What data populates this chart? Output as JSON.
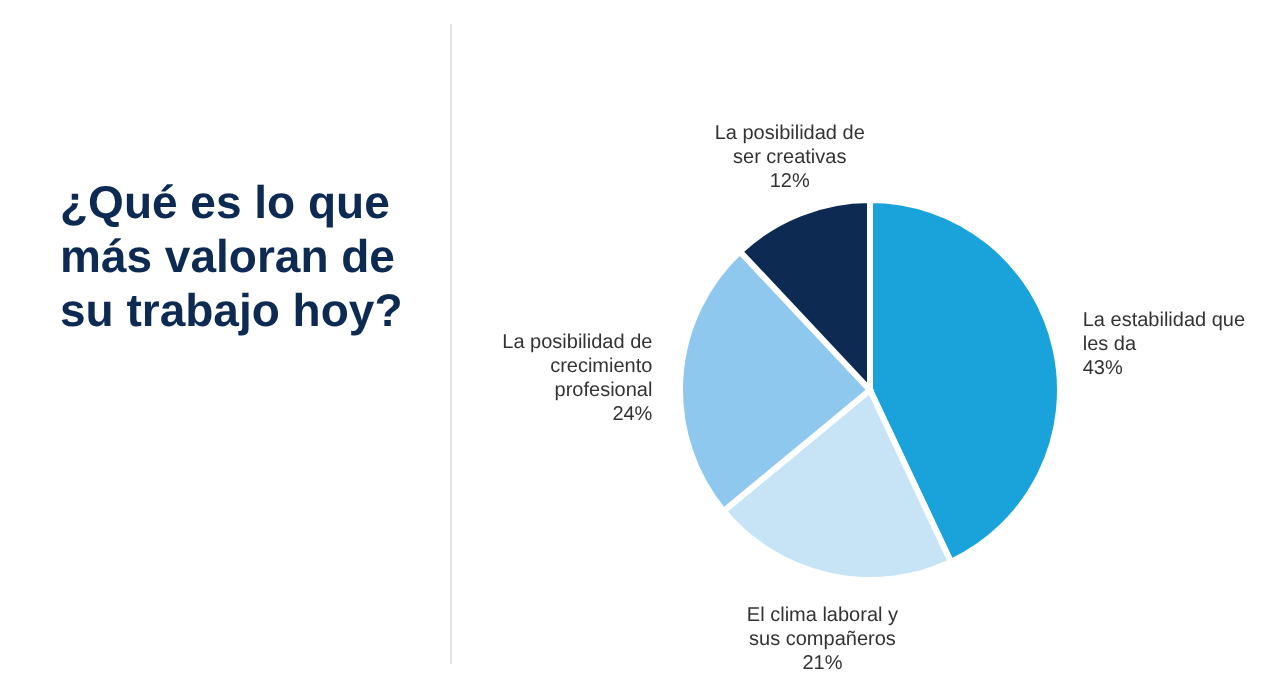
{
  "chart_data": {
    "type": "pie",
    "title": "¿Qué es lo que más valoran de su trabajo hoy?",
    "categories": [
      "La estabilidad que les da",
      "El clima laboral y sus compañeros",
      "La posibilidad de crecimiento profesional",
      "La posibilidad de ser creativas"
    ],
    "values": [
      43,
      21,
      24,
      12
    ],
    "colors": [
      "#1aa3da",
      "#c6e4f6",
      "#8fc8ee",
      "#0d2a52"
    ],
    "value_labels": [
      "43%",
      "21%",
      "24%",
      "12%"
    ],
    "legend": false
  }
}
